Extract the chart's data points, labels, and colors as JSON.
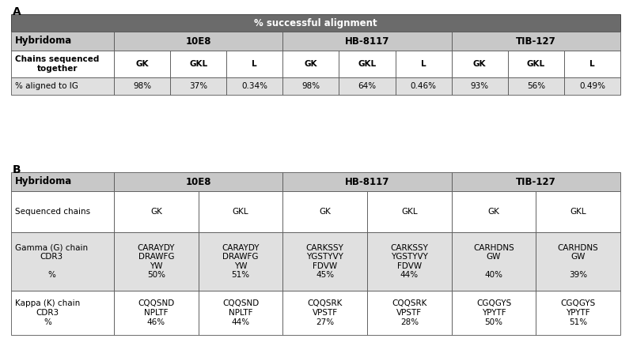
{
  "panel_A": {
    "title": "% successful alignment",
    "title_bg": "#6b6b6b",
    "title_color": "#ffffff",
    "header_bg": "#c8c8c8",
    "row1_bg": "#ffffff",
    "row2_bg": "#e0e0e0",
    "rows": [
      [
        "Chains sequenced\ntogether",
        "GK",
        "GKL",
        "L",
        "GK",
        "GKL",
        "L",
        "GK",
        "GKL",
        "L"
      ],
      [
        "% aligned to IG",
        "98%",
        "37%",
        "0.34%",
        "98%",
        "64%",
        "0.46%",
        "93%",
        "56%",
        "0.49%"
      ]
    ]
  },
  "panel_B": {
    "header_bg": "#c8c8c8",
    "row_bg": "#ffffff",
    "alt_row_bg": "#e0e0e0",
    "rows": [
      [
        "Sequenced chains",
        "GK",
        "GKL",
        "GK",
        "GKL",
        "GK",
        "GKL"
      ],
      [
        "Gamma (G) chain\nCDR3\n\n%",
        "CARAYDY\nDRAWFG\nYW\n50%",
        "CARAYDY\nDRAWFG\nYW\n51%",
        "CARKSSY\nYGSTYVY\nFDVW\n45%",
        "CARKSSY\nYGSTYVY\nFDVW\n44%",
        "CARHDNS\nGW\n\n40%",
        "CARHDNS\nGW\n\n39%"
      ],
      [
        "Kappa (K) chain\nCDR3\n%",
        "CQQSND\nNPLTF\n46%",
        "CQQSND\nNPLTF\n44%",
        "CQQSRK\nVPSTF\n27%",
        "CQQSRK\nVPSTF\n28%",
        "CGQGYS\nYPYTF\n50%",
        "CGQGYS\nYPYTF\n51%"
      ]
    ]
  },
  "bg_color": "#ffffff",
  "border_color": "#000000"
}
